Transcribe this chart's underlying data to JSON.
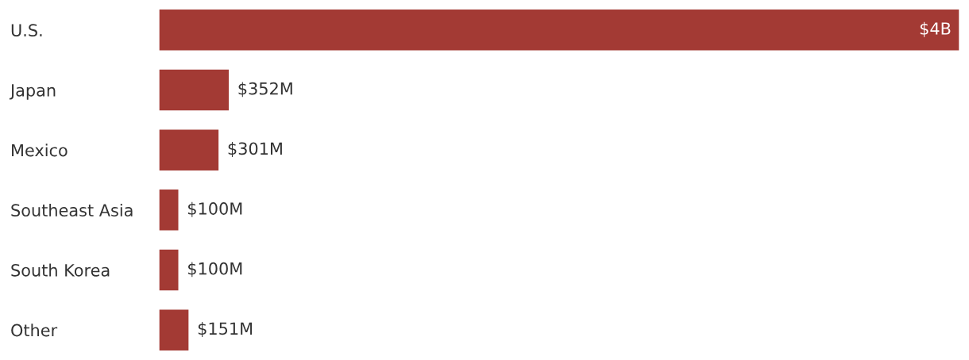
{
  "chart_data": {
    "type": "bar",
    "orientation": "horizontal",
    "categories": [
      "U.S.",
      "Japan",
      "Mexico",
      "Southeast Asia",
      "South Korea",
      "Other"
    ],
    "values": [
      4000000000,
      352000000,
      301000000,
      100000000,
      100000000,
      151000000
    ],
    "value_labels": [
      "$4B",
      "$352M",
      "$301M",
      "$100M",
      "$100M",
      "$151M"
    ],
    "color": "#a33a34",
    "grid": false,
    "legend": false
  }
}
